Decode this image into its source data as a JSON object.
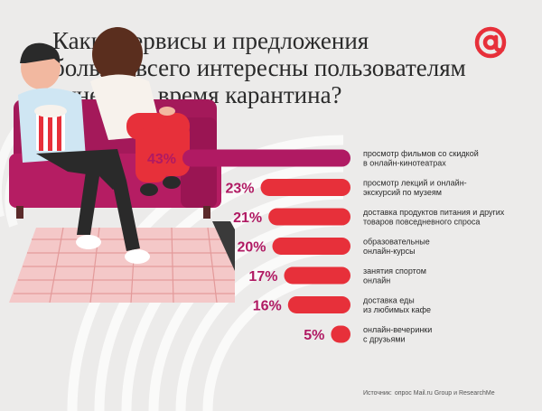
{
  "header": {
    "title_lines": [
      "Какие сервисы и предложения",
      "больше всего интересны пользователям",
      "рунета во время карантина?"
    ],
    "logo_icon": "at-sign-icon"
  },
  "colors": {
    "background": "#ecebea",
    "top_bar": "#b01a63",
    "bars": "#e7303a",
    "logo": "#e7303a"
  },
  "chart_data": {
    "type": "bar",
    "orientation": "horizontal",
    "title": "Какие сервисы и предложения больше всего интересны пользователям рунета во время карантина?",
    "categories": [
      [
        "просмотр фильмов со скидкой",
        "в онлайн-кинотеатрах"
      ],
      [
        "просмотр лекций и онлайн-",
        "экскурсий по музеям"
      ],
      [
        "доставка продуктов питания и других",
        "товаров повседневного спроса"
      ],
      [
        "образовательные",
        "онлайн-курсы"
      ],
      [
        "занятия спортом",
        "онлайн"
      ],
      [
        "доставка еды",
        "из любимых кафе"
      ],
      [
        "онлайн-вечеринки",
        "с друзьями"
      ]
    ],
    "values": [
      43,
      23,
      21,
      20,
      17,
      16,
      5
    ],
    "value_labels": [
      "43%",
      "23%",
      "21%",
      "20%",
      "17%",
      "16%",
      "5%"
    ],
    "xlim": [
      0,
      43
    ],
    "grid": false,
    "legend": "none"
  },
  "footer": {
    "source_label": "Источник:",
    "source_text": "опрос Mail.ru Group и ResearchMe"
  }
}
